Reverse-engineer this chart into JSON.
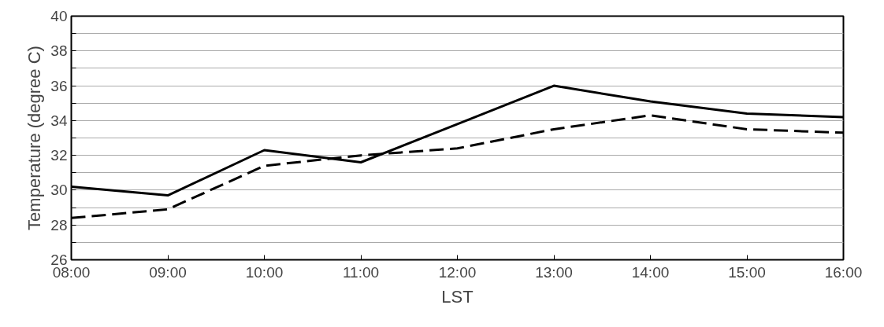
{
  "chart_data": {
    "type": "line",
    "xlabel": "LST",
    "ylabel": "Temperature (degree C)",
    "x": [
      8,
      9,
      10,
      11,
      12,
      13,
      14,
      15,
      16
    ],
    "series": [
      {
        "color": "#000000",
        "line_style": "solid",
        "values": [
          30.2,
          29.7,
          32.3,
          31.6,
          33.8,
          36.0,
          35.1,
          34.4,
          34.2
        ]
      },
      {
        "color": "#000000",
        "line_style": "dashed",
        "values": [
          28.4,
          28.9,
          31.4,
          32.0,
          32.4,
          33.5,
          34.3,
          33.5,
          33.3
        ]
      }
    ],
    "xlim": [
      8,
      16
    ],
    "ylim": [
      26,
      40
    ],
    "xticks": [
      {
        "value": 8,
        "label": "08:00"
      },
      {
        "value": 9,
        "label": "09:00"
      },
      {
        "value": 10,
        "label": "10:00"
      },
      {
        "value": 11,
        "label": "11:00"
      },
      {
        "value": 12,
        "label": "12:00"
      },
      {
        "value": 13,
        "label": "13:00"
      },
      {
        "value": 14,
        "label": "14:00"
      },
      {
        "value": 15,
        "label": "15:00"
      },
      {
        "value": 16,
        "label": "16:00"
      }
    ],
    "yticks": [
      26,
      {
        "value": 27,
        "label": null
      },
      28,
      {
        "value": 29,
        "label": null
      },
      30,
      {
        "value": 31,
        "label": null
      },
      32,
      {
        "value": 33,
        "label": null
      },
      34,
      {
        "value": 35,
        "label": null
      },
      36,
      {
        "value": 37,
        "label": null
      },
      38,
      {
        "value": 39,
        "label": null
      },
      40
    ],
    "grid": "y",
    "marker": "none"
  }
}
